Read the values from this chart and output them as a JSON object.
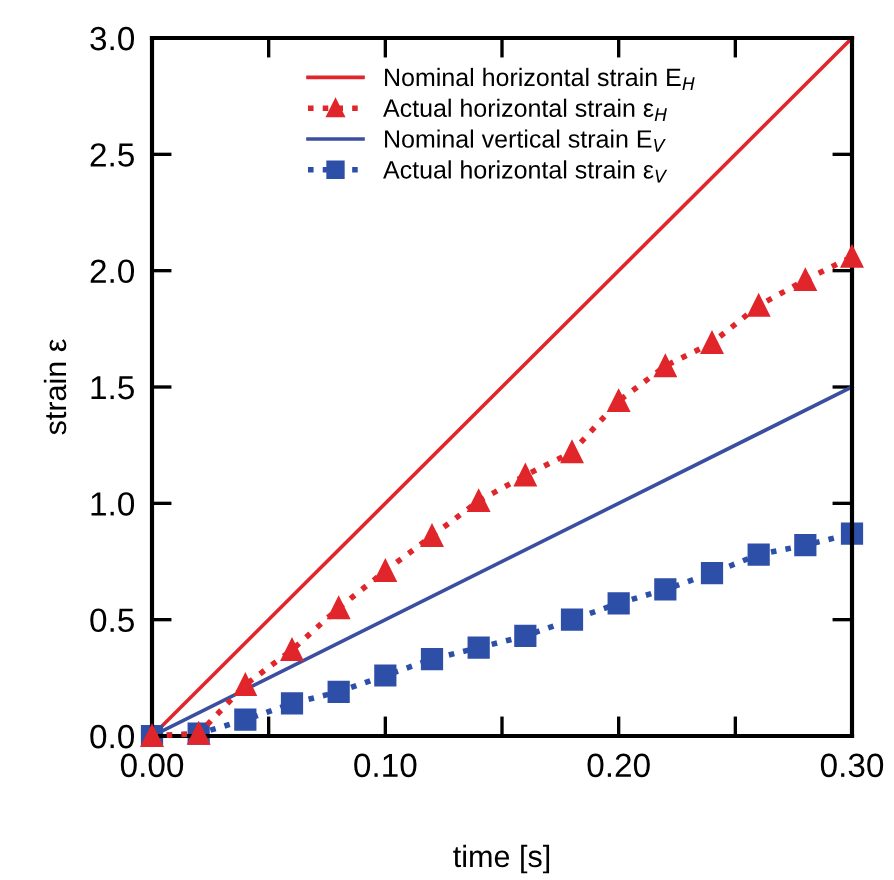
{
  "chart_data": {
    "type": "line",
    "xlabel": "time [s]",
    "ylabel": "strain ε",
    "xlim": [
      0,
      0.3
    ],
    "ylim": [
      0,
      3.0
    ],
    "xticks": [
      {
        "value": 0,
        "label": "0.00"
      },
      {
        "value": 0.05,
        "label": null
      },
      {
        "value": 0.1,
        "label": "0.10"
      },
      {
        "value": 0.15,
        "label": null
      },
      {
        "value": 0.2,
        "label": "0.20"
      },
      {
        "value": 0.25,
        "label": null
      },
      {
        "value": 0.3,
        "label": "0.30"
      }
    ],
    "yticks": [
      {
        "value": 0,
        "label": "0.0"
      },
      {
        "value": 0.5,
        "label": "0.5"
      },
      {
        "value": 1.0,
        "label": "1.0"
      },
      {
        "value": 1.5,
        "label": "1.5"
      },
      {
        "value": 2.0,
        "label": "2.0"
      },
      {
        "value": 2.5,
        "label": "2.5"
      },
      {
        "value": 3.0,
        "label": "3.0"
      }
    ],
    "grid": false,
    "legend": "top",
    "series": [
      {
        "name": "Nominal horizontal strain E$_{H}$",
        "color": "#e0262b",
        "line_style": "solid",
        "x": [
          0,
          0.3
        ],
        "values": [
          0,
          3.0
        ]
      },
      {
        "name": "Actual horizontal strain ε$_{H}$",
        "color": "#e0262b",
        "marker": "triangle",
        "line_style": "dotted",
        "x": [
          0,
          0.02,
          0.04,
          0.06,
          0.08,
          0.1,
          0.12,
          0.14,
          0.16,
          0.18,
          0.2,
          0.22,
          0.24,
          0.26,
          0.28,
          0.3
        ],
        "values": [
          0,
          0.01,
          0.22,
          0.37,
          0.55,
          0.71,
          0.86,
          1.01,
          1.12,
          1.22,
          1.44,
          1.59,
          1.69,
          1.85,
          1.96,
          2.06
        ]
      },
      {
        "name": "Nominal vertical strain E$_{V}$",
        "color": "#3a4fa0",
        "line_style": "solid",
        "x": [
          0,
          0.3
        ],
        "values": [
          0,
          1.5
        ]
      },
      {
        "name": "Actual horizontal strain ε$_{V}$",
        "color": "#2d4fa8",
        "marker": "square",
        "line_style": "dotted",
        "x": [
          0,
          0.02,
          0.04,
          0.06,
          0.08,
          0.1,
          0.12,
          0.14,
          0.16,
          0.18,
          0.2,
          0.22,
          0.24,
          0.26,
          0.28,
          0.3
        ],
        "values": [
          0,
          0.01,
          0.07,
          0.14,
          0.19,
          0.26,
          0.33,
          0.38,
          0.43,
          0.5,
          0.57,
          0.63,
          0.7,
          0.78,
          0.82,
          0.87
        ]
      }
    ]
  }
}
